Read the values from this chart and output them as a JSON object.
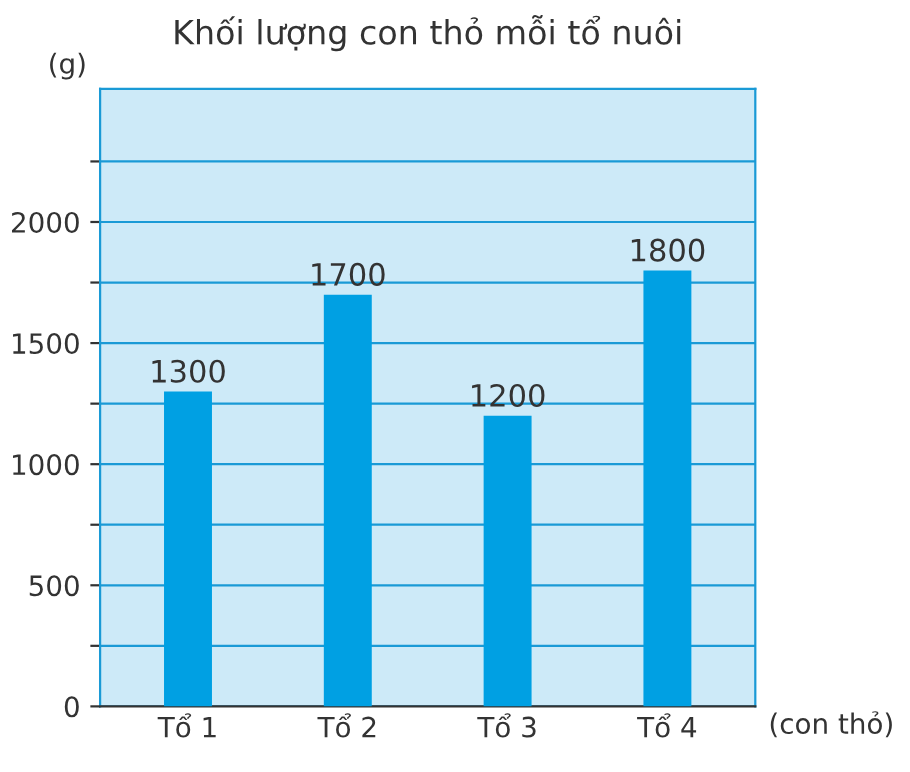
{
  "chart_data": {
    "type": "bar",
    "title": "Khối lượng con thỏ mỗi tổ nuôi",
    "ylabel": "(g)",
    "xlabel": "(con thỏ)",
    "categories": [
      "Tổ 1",
      "Tổ 2",
      "Tổ 3",
      "Tổ 4"
    ],
    "values": [
      1300,
      1700,
      1200,
      1800
    ],
    "color": "#00a0e3",
    "ylim": [
      0,
      2550
    ],
    "yticks": [
      0,
      {
        "value": 250,
        "label": null
      },
      500,
      {
        "value": 750,
        "label": null
      },
      1000,
      {
        "value": 1250,
        "label": null
      },
      1500,
      {
        "value": 1750,
        "label": null
      },
      2000,
      {
        "value": 2250,
        "label": null
      }
    ],
    "grid": "y",
    "data_labels": true
  }
}
